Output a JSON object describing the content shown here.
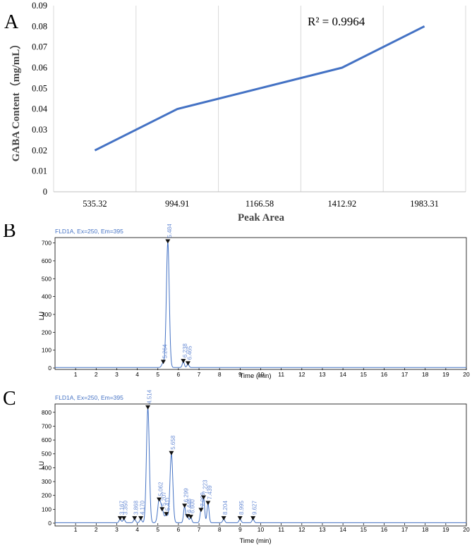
{
  "chart_data": [
    {
      "panel": "A",
      "type": "line",
      "categories": [
        "535.32",
        "994.91",
        "1166.58",
        "1412.92",
        "1983.31"
      ],
      "values": [
        0.02,
        0.04,
        0.05,
        0.06,
        0.08
      ],
      "xlabel": "Peak Area",
      "ylabel": "GABA Content（mg/mL）",
      "ylim": [
        0,
        0.09
      ],
      "yticks": [
        "0",
        "0.01",
        "0.02",
        "0.03",
        "0.04",
        "0.05",
        "0.06",
        "0.07",
        "0.08",
        "0.09"
      ],
      "annotation": "R² = 0.9964",
      "grid": "vertical",
      "line_color": "#4472c4"
    },
    {
      "panel": "B",
      "type": "line",
      "title": "FLD1A, Ex=250, Em=395",
      "xlabel": "Time (min)",
      "ylabel": "LU",
      "xlim": [
        0,
        20
      ],
      "ylim": [
        0,
        730
      ],
      "xticks": [
        "1",
        "2",
        "3",
        "4",
        "5",
        "6",
        "7",
        "8",
        "9",
        "10",
        "11",
        "12",
        "13",
        "14",
        "15",
        "16",
        "17",
        "18",
        "19",
        "20"
      ],
      "yticks": [
        "0",
        "100",
        "200",
        "300",
        "400",
        "500",
        "600",
        "700"
      ],
      "peaks": [
        {
          "label": "5.264",
          "time": 5.264,
          "height": 30
        },
        {
          "label": "5.484",
          "time": 5.484,
          "height": 705
        },
        {
          "label": "6.238",
          "time": 6.238,
          "height": 35
        },
        {
          "label": "6.465",
          "time": 6.465,
          "height": 22
        }
      ],
      "line_color": "#4472c4"
    },
    {
      "panel": "C",
      "type": "line",
      "title": "FLD1A, Ex=250, Em=395",
      "xlabel": "Time (min)",
      "ylabel": "LU",
      "xlim": [
        0,
        20
      ],
      "ylim": [
        0,
        860
      ],
      "xticks": [
        "1",
        "2",
        "3",
        "4",
        "5",
        "6",
        "7",
        "8",
        "9",
        "10",
        "11",
        "12",
        "13",
        "14",
        "15",
        "16",
        "17",
        "18",
        "19",
        "20"
      ],
      "yticks": [
        "0",
        "100",
        "200",
        "300",
        "400",
        "500",
        "600",
        "700",
        "800"
      ],
      "peaks": [
        {
          "label": "3.167",
          "time": 3.167,
          "height": 30
        },
        {
          "label": "3.350",
          "time": 3.35,
          "height": 30
        },
        {
          "label": "3.868",
          "time": 3.868,
          "height": 30
        },
        {
          "label": "4.170",
          "time": 4.17,
          "height": 30
        },
        {
          "label": "4.514",
          "time": 4.514,
          "height": 830
        },
        {
          "label": "5.062",
          "time": 5.062,
          "height": 165
        },
        {
          "label": "5.207",
          "time": 5.207,
          "height": 95
        },
        {
          "label": "5.411",
          "time": 5.411,
          "height": 60
        },
        {
          "label": "5.658",
          "time": 5.658,
          "height": 500
        },
        {
          "label": "6.299",
          "time": 6.299,
          "height": 120
        },
        {
          "label": "6.446",
          "time": 6.446,
          "height": 45
        },
        {
          "label": "6.600",
          "time": 6.6,
          "height": 40
        },
        {
          "label": "7.099",
          "time": 7.099,
          "height": 90
        },
        {
          "label": "7.223",
          "time": 7.223,
          "height": 180
        },
        {
          "label": "7.439",
          "time": 7.439,
          "height": 140
        },
        {
          "label": "8.204",
          "time": 8.204,
          "height": 30
        },
        {
          "label": "8.995",
          "time": 8.995,
          "height": 30
        },
        {
          "label": "9.627",
          "time": 9.627,
          "height": 30
        }
      ],
      "line_color": "#4472c4"
    }
  ]
}
